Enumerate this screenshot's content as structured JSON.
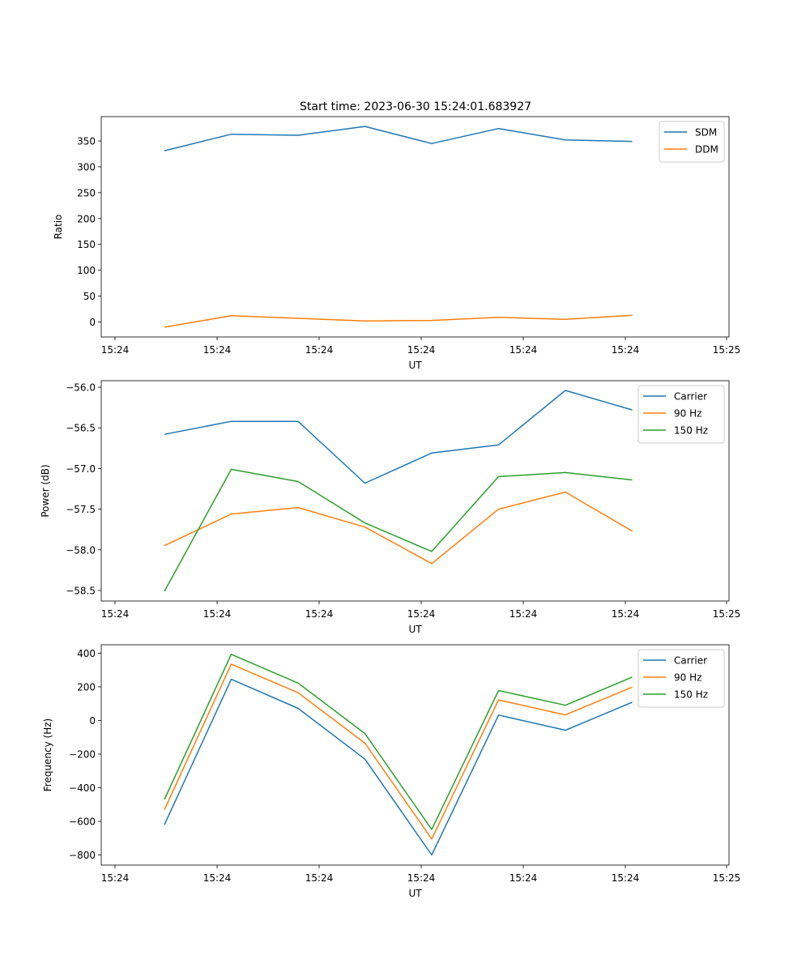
{
  "title": "Start time: 2023-06-30 15:24:01.683927",
  "chart_data": [
    {
      "type": "line",
      "xlabel": "UT",
      "ylabel": "Ratio",
      "x_tick_labels": [
        "15:24",
        "15:24",
        "15:24",
        "15:24",
        "15:24",
        "15:24",
        "15:25"
      ],
      "y_ticks": [
        0,
        50,
        100,
        150,
        200,
        250,
        300,
        350
      ],
      "ylim": [
        -29,
        397
      ],
      "legend_position": "top-right",
      "series": [
        {
          "name": "SDM",
          "color": "#1f77b4",
          "values": [
            331,
            363,
            361,
            378,
            345,
            374,
            352,
            349
          ]
        },
        {
          "name": "DDM",
          "color": "#ff7f0e",
          "values": [
            -10,
            12,
            7,
            2,
            3,
            9,
            5,
            13
          ]
        }
      ]
    },
    {
      "type": "line",
      "xlabel": "UT",
      "ylabel": "Power (dB)",
      "x_tick_labels": [
        "15:24",
        "15:24",
        "15:24",
        "15:24",
        "15:24",
        "15:24",
        "15:25"
      ],
      "y_ticks": [
        -58.5,
        -58.0,
        -57.5,
        -57.0,
        -56.5,
        -56.0
      ],
      "y_tick_labels": [
        "−58.5",
        "−58.0",
        "−57.5",
        "−57.0",
        "−56.5",
        "−56.0"
      ],
      "ylim": [
        -58.63,
        -55.92
      ],
      "legend_position": "top-right",
      "series": [
        {
          "name": "Carrier",
          "color": "#1f77b4",
          "values": [
            -56.58,
            -56.42,
            -56.42,
            -57.18,
            -56.81,
            -56.71,
            -56.04,
            -56.28
          ]
        },
        {
          "name": "90 Hz",
          "color": "#ff7f0e",
          "values": [
            -57.95,
            -57.56,
            -57.48,
            -57.72,
            -58.17,
            -57.5,
            -57.29,
            -57.77
          ]
        },
        {
          "name": "150 Hz",
          "color": "#2ca02c",
          "values": [
            -58.51,
            -57.01,
            -57.16,
            -57.67,
            -58.02,
            -57.1,
            -57.05,
            -57.14
          ]
        }
      ]
    },
    {
      "type": "line",
      "xlabel": "UT",
      "ylabel": "Frequency (Hz)",
      "x_tick_labels": [
        "15:24",
        "15:24",
        "15:24",
        "15:24",
        "15:24",
        "15:24",
        "15:25"
      ],
      "y_ticks": [
        -800,
        -600,
        -400,
        -200,
        0,
        200,
        400
      ],
      "y_tick_labels": [
        "−800",
        "−600",
        "−400",
        "−200",
        "0",
        "200",
        "400"
      ],
      "ylim": [
        -860,
        450
      ],
      "legend_position": "top-right",
      "series": [
        {
          "name": "Carrier",
          "color": "#1f77b4",
          "values": [
            -620,
            245,
            72,
            -230,
            -800,
            32,
            -58,
            108
          ]
        },
        {
          "name": "90 Hz",
          "color": "#ff7f0e",
          "values": [
            -530,
            335,
            165,
            -135,
            -705,
            122,
            33,
            198
          ]
        },
        {
          "name": "150 Hz",
          "color": "#2ca02c",
          "values": [
            -470,
            393,
            222,
            -78,
            -648,
            178,
            90,
            258
          ]
        }
      ]
    }
  ]
}
